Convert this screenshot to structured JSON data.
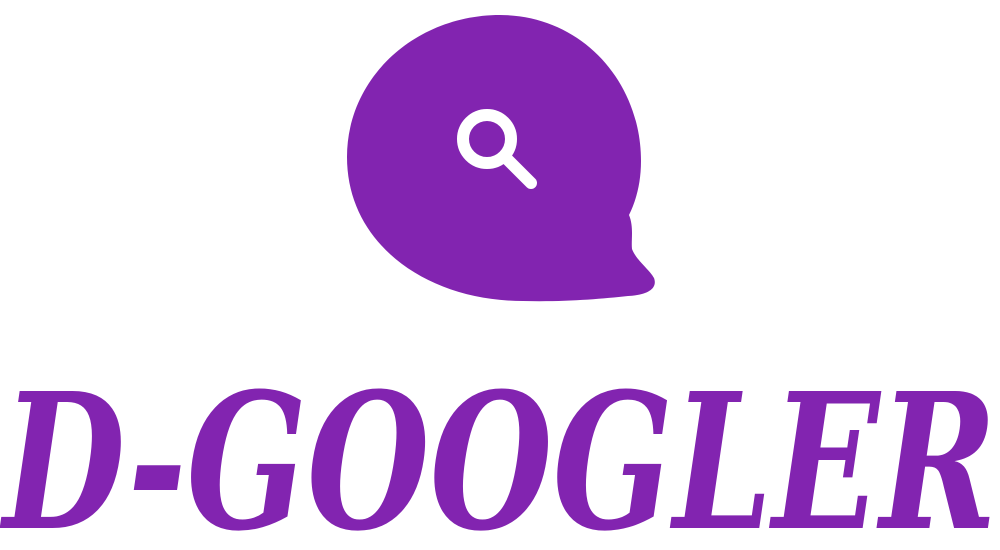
{
  "brand": {
    "name": "D-GOOGLER",
    "color": "#8224B0",
    "icon": "search-icon"
  }
}
